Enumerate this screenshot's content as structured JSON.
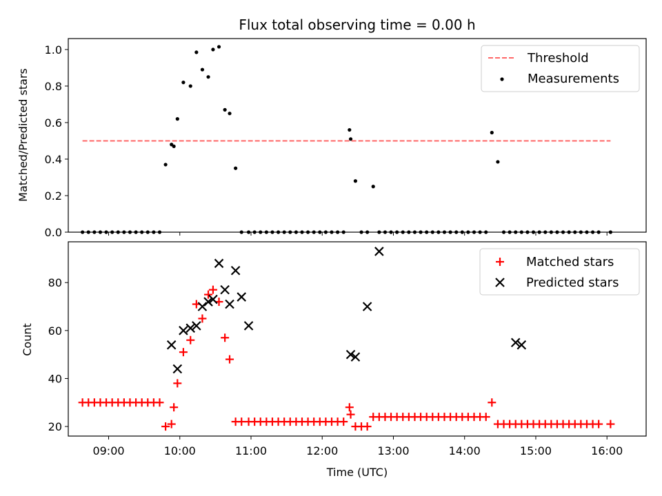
{
  "chart_data": [
    {
      "type": "scatter",
      "title": "Flux total observing time = 0.00 h",
      "xlabel": "",
      "ylabel": "Matched/Predicted stars",
      "xlim": [
        "08:26",
        "16:33"
      ],
      "ylim": [
        0,
        1.06
      ],
      "yticks": [
        "0.0",
        "0.2",
        "0.4",
        "0.6",
        "0.8",
        "1.0"
      ],
      "grid": false,
      "legend_position": "top-right",
      "colors": {
        "threshold": "#ff6666",
        "measurements": "#000000"
      },
      "legend": [
        "Threshold",
        "Measurements"
      ],
      "threshold": {
        "value": 0.5,
        "x_start": "08:38",
        "x_end": "16:03"
      },
      "series": [
        {
          "name": "Measurements",
          "x": [
            "08:38",
            "08:43",
            "08:48",
            "08:53",
            "08:58",
            "09:03",
            "09:08",
            "09:13",
            "09:18",
            "09:23",
            "09:28",
            "09:33",
            "09:38",
            "09:43",
            "09:48",
            "09:53",
            "09:55",
            "09:58",
            "10:03",
            "10:09",
            "10:14",
            "10:19",
            "10:24",
            "10:28",
            "10:33",
            "10:38",
            "10:42",
            "10:47",
            "10:52",
            "10:58",
            "11:03",
            "11:08",
            "11:13",
            "11:18",
            "11:23",
            "11:28",
            "11:33",
            "11:38",
            "11:43",
            "11:48",
            "11:53",
            "11:58",
            "12:03",
            "12:08",
            "12:13",
            "12:18",
            "12:23",
            "12:24",
            "12:28",
            "12:33",
            "12:38",
            "12:43",
            "12:48",
            "12:53",
            "12:58",
            "13:03",
            "13:08",
            "13:13",
            "13:18",
            "13:23",
            "13:28",
            "13:33",
            "13:38",
            "13:43",
            "13:48",
            "13:53",
            "13:58",
            "14:03",
            "14:08",
            "14:13",
            "14:18",
            "14:23",
            "14:28",
            "14:33",
            "14:38",
            "14:43",
            "14:48",
            "14:53",
            "14:58",
            "15:03",
            "15:08",
            "15:13",
            "15:18",
            "15:23",
            "15:28",
            "15:33",
            "15:38",
            "15:43",
            "15:48",
            "15:53",
            "16:03"
          ],
          "y": [
            0,
            0,
            0,
            0,
            0,
            0,
            0,
            0,
            0,
            0,
            0,
            0,
            0,
            0,
            0.37,
            0.48,
            0.47,
            0.62,
            0.82,
            0.8,
            0.985,
            0.89,
            0.85,
            1.0,
            1.015,
            0.67,
            0.65,
            0.35,
            0,
            0,
            0,
            0,
            0,
            0,
            0,
            0,
            0,
            0,
            0,
            0,
            0,
            0,
            0,
            0,
            0,
            0,
            0.56,
            0.51,
            0.28,
            0,
            0,
            0.25,
            0,
            0,
            0,
            0,
            0,
            0,
            0,
            0,
            0,
            0,
            0,
            0,
            0,
            0,
            0,
            0,
            0,
            0,
            0,
            0.545,
            0.385,
            0,
            0,
            0,
            0,
            0,
            0,
            0,
            0,
            0,
            0,
            0,
            0,
            0,
            0,
            0,
            0,
            0,
            0
          ]
        }
      ]
    },
    {
      "type": "scatter",
      "title": "",
      "xlabel": "Time (UTC)",
      "ylabel": "Count",
      "xlim": [
        "08:26",
        "16:33"
      ],
      "ylim": [
        16,
        97
      ],
      "xticks": [
        "09:00",
        "10:00",
        "11:00",
        "12:00",
        "13:00",
        "14:00",
        "15:00",
        "16:00"
      ],
      "yticks": [
        "20",
        "40",
        "60",
        "80"
      ],
      "grid": false,
      "legend_position": "top-right",
      "colors": {
        "matched": "#ff0000",
        "predicted": "#000000"
      },
      "legend": [
        "Matched stars",
        "Predicted stars"
      ],
      "series": [
        {
          "name": "Matched stars",
          "x": [
            "08:38",
            "08:43",
            "08:48",
            "08:53",
            "08:58",
            "09:03",
            "09:08",
            "09:13",
            "09:18",
            "09:23",
            "09:28",
            "09:33",
            "09:38",
            "09:43",
            "09:48",
            "09:53",
            "09:55",
            "09:58",
            "10:03",
            "10:09",
            "10:14",
            "10:19",
            "10:24",
            "10:28",
            "10:33",
            "10:38",
            "10:42",
            "10:47",
            "10:52",
            "10:58",
            "11:03",
            "11:08",
            "11:13",
            "11:18",
            "11:23",
            "11:28",
            "11:33",
            "11:38",
            "11:43",
            "11:48",
            "11:53",
            "11:58",
            "12:03",
            "12:08",
            "12:13",
            "12:18",
            "12:23",
            "12:24",
            "12:28",
            "12:33",
            "12:38",
            "12:43",
            "12:48",
            "12:53",
            "12:58",
            "13:03",
            "13:08",
            "13:13",
            "13:18",
            "13:23",
            "13:28",
            "13:33",
            "13:38",
            "13:43",
            "13:48",
            "13:53",
            "13:58",
            "14:03",
            "14:08",
            "14:13",
            "14:18",
            "14:23",
            "14:28",
            "14:33",
            "14:38",
            "14:43",
            "14:48",
            "14:53",
            "14:58",
            "15:03",
            "15:08",
            "15:13",
            "15:18",
            "15:23",
            "15:28",
            "15:33",
            "15:38",
            "15:43",
            "15:48",
            "15:53",
            "16:03"
          ],
          "y": [
            30,
            30,
            30,
            30,
            30,
            30,
            30,
            30,
            30,
            30,
            30,
            30,
            30,
            30,
            20,
            21,
            28,
            38,
            51,
            56,
            71,
            65,
            75,
            77,
            72,
            57,
            48,
            22,
            22,
            22,
            22,
            22,
            22,
            22,
            22,
            22,
            22,
            22,
            22,
            22,
            22,
            22,
            22,
            22,
            22,
            22,
            28,
            25,
            20,
            20,
            20,
            24,
            24,
            24,
            24,
            24,
            24,
            24,
            24,
            24,
            24,
            24,
            24,
            24,
            24,
            24,
            24,
            24,
            24,
            24,
            24,
            30,
            21,
            21,
            21,
            21,
            21,
            21,
            21,
            21,
            21,
            21,
            21,
            21,
            21,
            21,
            21,
            21,
            21,
            21,
            21
          ]
        },
        {
          "name": "Predicted stars",
          "x": [
            "09:53",
            "09:58",
            "10:03",
            "10:09",
            "10:14",
            "10:19",
            "10:24",
            "10:28",
            "10:33",
            "10:38",
            "10:42",
            "10:47",
            "10:52",
            "10:58",
            "12:24",
            "12:28",
            "12:38",
            "12:48",
            "14:43",
            "14:48"
          ],
          "y": [
            54,
            44,
            60,
            61,
            62,
            70,
            72,
            73,
            88,
            77,
            71,
            85,
            74,
            62,
            50,
            49,
            70,
            93,
            55,
            54
          ]
        }
      ]
    }
  ]
}
